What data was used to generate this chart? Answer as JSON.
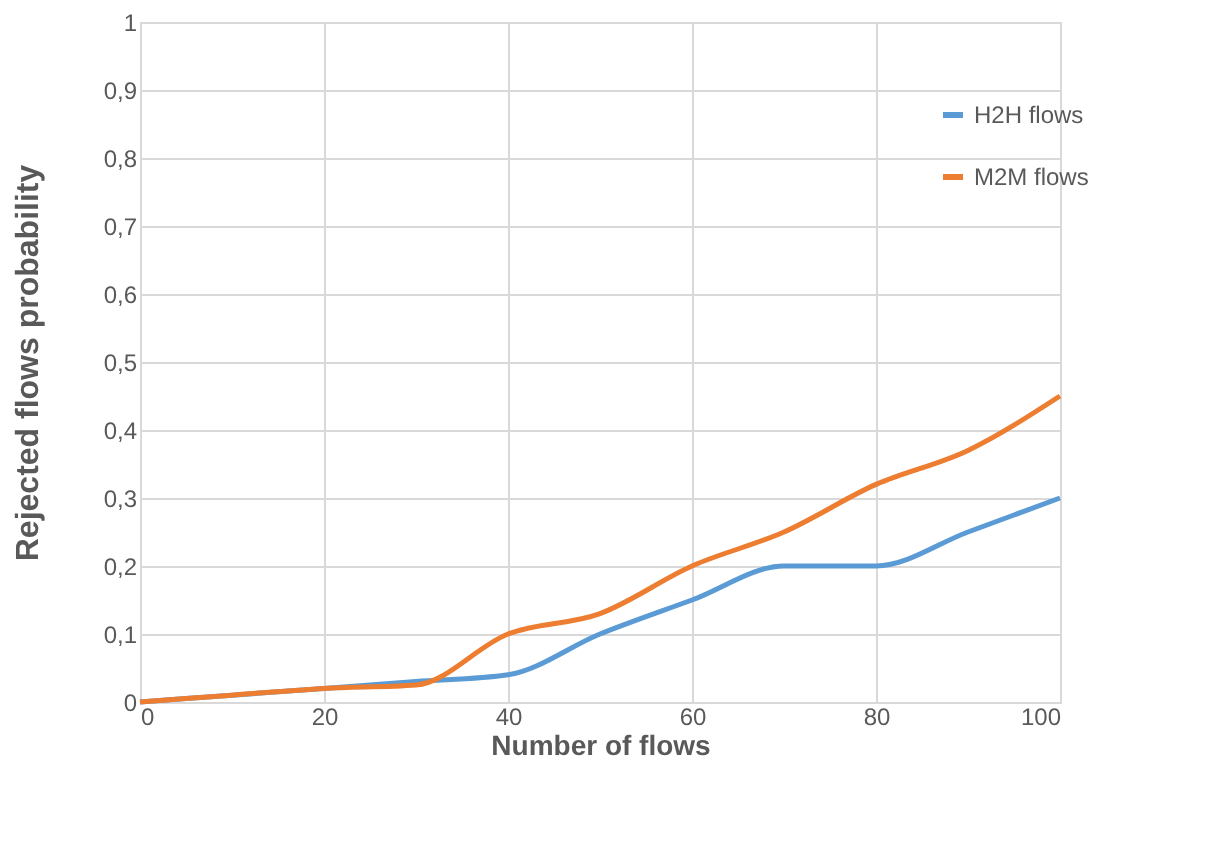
{
  "chart_data": {
    "type": "line",
    "xlabel": "Number of flows",
    "ylabel": "Rejected flows probability",
    "x": [
      0,
      10,
      20,
      30,
      40,
      50,
      60,
      70,
      80,
      90,
      100
    ],
    "series": [
      {
        "name": "H2H flows",
        "color": "#5b9bd5",
        "values": [
          0,
          0.01,
          0.02,
          0.03,
          0.04,
          0.1,
          0.15,
          0.2,
          0.2,
          0.25,
          0.3
        ]
      },
      {
        "name": "M2M flows",
        "color": "#ed7d31",
        "values": [
          0,
          0.01,
          0.02,
          0.025,
          0.1,
          0.13,
          0.2,
          0.25,
          0.32,
          0.37,
          0.45
        ]
      }
    ],
    "xlim": [
      0,
      100
    ],
    "xticks": [
      0,
      20,
      40,
      60,
      80,
      100
    ],
    "ylim": [
      0,
      1
    ],
    "yticks": [
      0,
      {
        "value": 0.1,
        "label": "0,1"
      },
      {
        "value": 0.2,
        "label": "0,2"
      },
      {
        "value": 0.3,
        "label": "0,3"
      },
      {
        "value": 0.4,
        "label": "0,4"
      },
      {
        "value": 0.5,
        "label": "0,5"
      },
      {
        "value": 0.6,
        "label": "0,6"
      },
      {
        "value": 0.7,
        "label": "0,7"
      },
      {
        "value": 0.8,
        "label": "0,8"
      },
      {
        "value": 0.9,
        "label": "0,9"
      },
      1
    ],
    "grid": true,
    "legend": "top right",
    "marker": "none",
    "line_style": "solid"
  }
}
